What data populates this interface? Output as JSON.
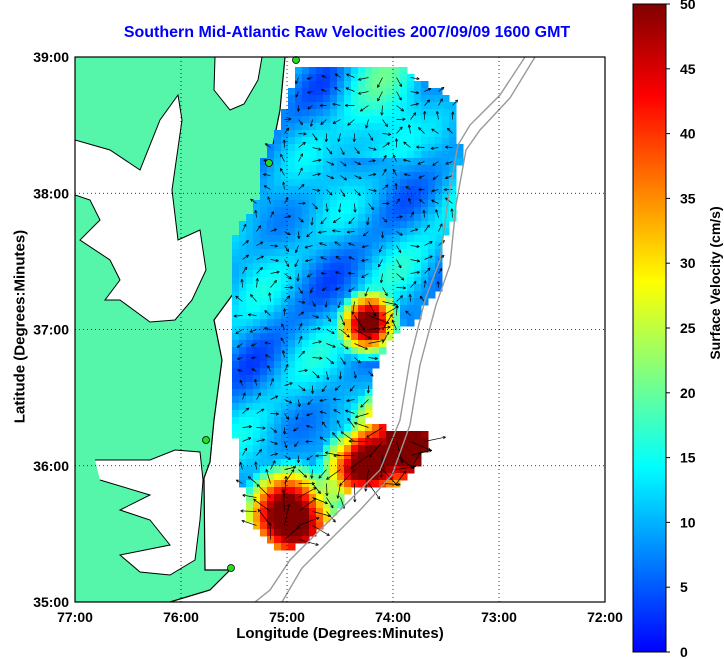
{
  "map": {
    "title": "Southern Mid-Atlantic Raw Velocities 2007/09/09 1600 GMT",
    "xlabel": "Longitude (Degrees:Minutes)",
    "ylabel": "Latitude (Degrees:Minutes)",
    "lon_range": [
      -77,
      -72
    ],
    "lat_range": [
      35,
      39
    ],
    "lon_ticks": [
      {
        "value": -77,
        "label": "77:00"
      },
      {
        "value": -76,
        "label": "76:00"
      },
      {
        "value": -75,
        "label": "75:00"
      },
      {
        "value": -74,
        "label": "74:00"
      },
      {
        "value": -73,
        "label": "73:00"
      },
      {
        "value": -72,
        "label": "72:00"
      }
    ],
    "lat_ticks": [
      {
        "value": 39,
        "label": "39:00"
      },
      {
        "value": 38,
        "label": "38:00"
      },
      {
        "value": 37,
        "label": "37:00"
      },
      {
        "value": 36,
        "label": "36:00"
      },
      {
        "value": 35,
        "label": "35:00"
      }
    ],
    "grid": "dotted",
    "land_color": "#55f5aa",
    "water_color": "#ffffff",
    "radar_site_color": "#22dd22"
  },
  "colorbar": {
    "label": "Surface Velocity (cm/s)",
    "units": "cm/s",
    "range": [
      0,
      50
    ],
    "ticks": [
      {
        "value": 50,
        "label": "50"
      },
      {
        "value": 45,
        "label": "45"
      },
      {
        "value": 40,
        "label": "40"
      },
      {
        "value": 35,
        "label": "35"
      },
      {
        "value": 30,
        "label": "30"
      },
      {
        "value": 25,
        "label": "25"
      },
      {
        "value": 20,
        "label": "20"
      },
      {
        "value": 15,
        "label": "15"
      },
      {
        "value": 10,
        "label": "10"
      },
      {
        "value": 5,
        "label": "5"
      },
      {
        "value": 0,
        "label": "0"
      }
    ],
    "colormap": [
      "#0000ff",
      "#0080ff",
      "#00ffff",
      "#80ff80",
      "#ffff00",
      "#ff8000",
      "#ff0000",
      "#800000"
    ]
  }
}
